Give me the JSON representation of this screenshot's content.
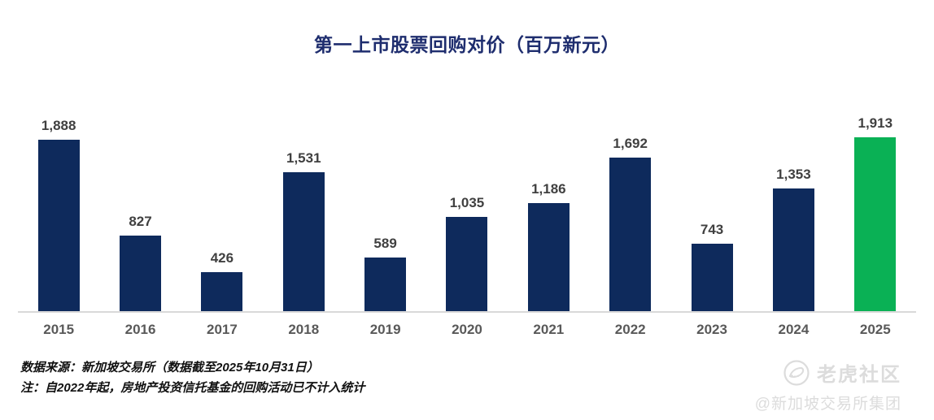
{
  "title": "第一上市股票回购对价（百万新元）",
  "chart_data": {
    "type": "bar",
    "title": "第一上市股票回购对价（百万新元）",
    "categories": [
      "2015",
      "2016",
      "2017",
      "2018",
      "2019",
      "2020",
      "2021",
      "2022",
      "2023",
      "2024",
      "2025"
    ],
    "values": [
      1888,
      827,
      426,
      1531,
      589,
      1035,
      1186,
      1692,
      743,
      1353,
      1913
    ],
    "value_labels": [
      "1,888",
      "827",
      "426",
      "1,531",
      "589",
      "1,035",
      "1,186",
      "1,692",
      "743",
      "1,353",
      "1,913"
    ],
    "xlabel": "",
    "ylabel": "",
    "ylim": [
      0,
      1913
    ],
    "grid": false,
    "legend": "none",
    "bar_color": "#0e2a5c",
    "highlight_index": 10,
    "highlight_color": "#0ab155"
  },
  "footnotes": {
    "source": "数据来源：新加坡交易所（数据截至2025年10月31日）",
    "note": "注：自2022年起，房地产投资信托基金的回购活动已不计入统计"
  },
  "watermark": {
    "brand": "老虎社区",
    "handle": "@新加坡交易所集团",
    "icon": "tiger-icon",
    "color": "#dcdcdc"
  },
  "colors": {
    "title": "#1e2d6e",
    "value_label": "#404040",
    "axis_label": "#595959",
    "baseline": "#d9d9d9"
  }
}
